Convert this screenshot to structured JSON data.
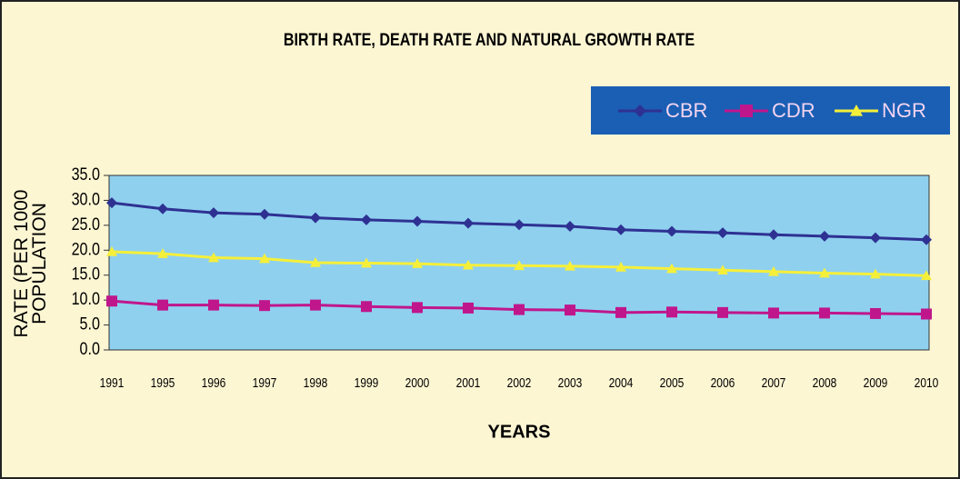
{
  "chart_data": {
    "type": "line",
    "title": "BIRTH RATE, DEATH RATE AND NATURAL GROWTH RATE",
    "x_label": "YEARS",
    "y_label": "RATE (PER 1000 POPULATION",
    "categories": [
      "1991",
      "1995",
      "1996",
      "1997",
      "1998",
      "1999",
      "2000",
      "2001",
      "2002",
      "2003",
      "2004",
      "2005",
      "2006",
      "2007",
      "2008",
      "2009",
      "2010"
    ],
    "series": [
      {
        "name": "CBR",
        "color": "#2e3192",
        "marker": "diamond",
        "values": [
          29.5,
          28.3,
          27.5,
          27.2,
          26.5,
          26.1,
          25.8,
          25.4,
          25.1,
          24.8,
          24.1,
          23.8,
          23.5,
          23.1,
          22.8,
          22.5,
          22.1
        ]
      },
      {
        "name": "CDR",
        "color": "#c0168c",
        "marker": "square",
        "values": [
          9.8,
          9.0,
          9.0,
          8.9,
          9.0,
          8.7,
          8.5,
          8.4,
          8.1,
          8.0,
          7.5,
          7.6,
          7.5,
          7.4,
          7.4,
          7.3,
          7.2
        ]
      },
      {
        "name": "NGR",
        "color": "#f5ef3a",
        "marker": "triangle",
        "values": [
          19.7,
          19.3,
          18.5,
          18.3,
          17.5,
          17.4,
          17.3,
          17.0,
          16.9,
          16.8,
          16.6,
          16.3,
          16.0,
          15.7,
          15.4,
          15.2,
          14.9
        ]
      }
    ],
    "ylim": [
      0,
      35
    ],
    "yticks": [
      {
        "value": 0,
        "label": "0.0"
      },
      {
        "value": 5,
        "label": "5.0"
      },
      {
        "value": 10,
        "label": "10.0"
      },
      {
        "value": 15,
        "label": "15.0"
      },
      {
        "value": 20,
        "label": "20.0"
      },
      {
        "value": 25,
        "label": "25.0"
      },
      {
        "value": 30,
        "label": "30.0"
      },
      {
        "value": 35,
        "label": "35.0"
      }
    ]
  }
}
